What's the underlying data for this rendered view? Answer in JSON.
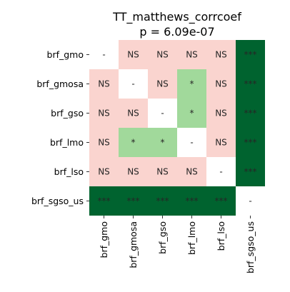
{
  "chart_data": {
    "type": "heatmap",
    "title": "TT_matthews_corrcoef",
    "subtitle": "p = 6.09e-07",
    "row_labels": [
      "brf_gmo",
      "brf_gmosa",
      "brf_gso",
      "brf_lmo",
      "brf_lso",
      "brf_sgso_us"
    ],
    "col_labels": [
      "brf_gmo",
      "brf_gmosa",
      "brf_gso",
      "brf_lmo",
      "brf_lso",
      "brf_sgso_us"
    ],
    "cells": [
      [
        "-",
        "NS",
        "NS",
        "NS",
        "NS",
        "***"
      ],
      [
        "NS",
        "-",
        "NS",
        "*",
        "NS",
        "***"
      ],
      [
        "NS",
        "NS",
        "-",
        "*",
        "NS",
        "***"
      ],
      [
        "NS",
        "*",
        "*",
        "-",
        "NS",
        "***"
      ],
      [
        "NS",
        "NS",
        "NS",
        "NS",
        "-",
        "***"
      ],
      [
        "***",
        "***",
        "***",
        "***",
        "***",
        "-"
      ]
    ],
    "colors": {
      "NS": "#fad4cf",
      "*": "#a1d99b",
      "***": "#00632f",
      "-": "#ffffff"
    },
    "text_colors": {
      "NS": "#262626",
      "*": "#262626",
      "***": "#ffffff",
      "-": "#262626"
    },
    "grid": false,
    "legend": "none"
  }
}
